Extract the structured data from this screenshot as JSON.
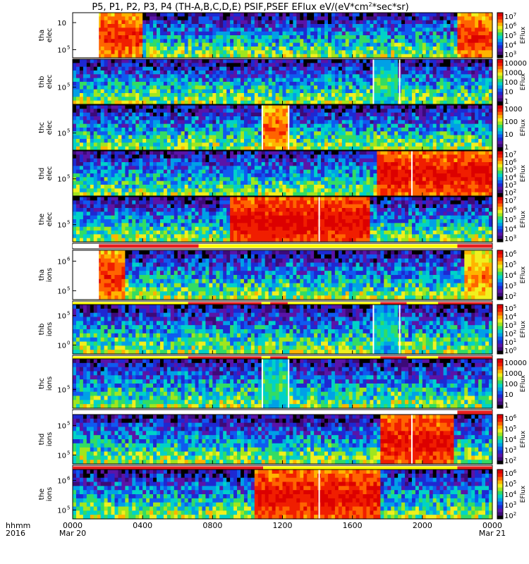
{
  "title": "P5, P1, P2, P3, P4 (TH-A,B,C,D,E) PSIF,PSEF EFlux eV/(eV*cm",
  "title_sup": "2",
  "title_tail": "*sec*sr)",
  "chart_data": {
    "type": "heatmap",
    "x_start": "2016-03-20 00:00",
    "x_end": "2016-03-21 00:00",
    "xaxis": {
      "row_label_1": "hhmm",
      "row_label_2": "2016",
      "ticks": [
        {
          "hhmm": "0000",
          "date": "Mar 20",
          "hour": 0
        },
        {
          "hhmm": "0400",
          "date": "",
          "hour": 4
        },
        {
          "hhmm": "0800",
          "date": "",
          "hour": 8
        },
        {
          "hhmm": "1200",
          "date": "",
          "hour": 12
        },
        {
          "hhmm": "1600",
          "date": "",
          "hour": 16
        },
        {
          "hhmm": "2000",
          "date": "",
          "hour": 20
        },
        {
          "hhmm": "0000",
          "date": "Mar 21",
          "hour": 24
        }
      ]
    },
    "colormap": [
      "#000000",
      "#3c0a78",
      "#5a14a8",
      "#1e28d2",
      "#0f5af0",
      "#00a0e6",
      "#00d2c8",
      "#32dc64",
      "#a0e61e",
      "#f0f01e",
      "#ffb400",
      "#ff6400",
      "#f01e00",
      "#dc0000"
    ],
    "panels": [
      {
        "probe": "tha",
        "species": "elec",
        "yticks": [
          "10",
          "10"
        ],
        "ytick_exp": [
          "",
          "5"
        ],
        "cb_ticks": [
          "10^7",
          "10^6",
          "10^5",
          "10^4",
          "10^3"
        ],
        "cb_label": "EFlux",
        "bar": null,
        "gaps": [
          [
            0,
            1.5
          ]
        ],
        "hot": [
          [
            0,
            4,
            0.9
          ],
          [
            22,
            24,
            0.9
          ]
        ],
        "lines": []
      },
      {
        "probe": "thb",
        "species": "elec",
        "yticks": [
          "10"
        ],
        "ytick_exp": [
          "5"
        ],
        "cb_ticks": [
          "10000",
          "1000",
          "100",
          "10",
          "1"
        ],
        "cb_label": "EFlux",
        "bar": null,
        "gaps": [],
        "hot": [
          [
            17.3,
            18.6,
            0.55
          ]
        ],
        "lines": [
          17.2,
          18.7
        ]
      },
      {
        "probe": "thc",
        "species": "elec",
        "yticks": [
          "10"
        ],
        "ytick_exp": [
          "5"
        ],
        "cb_ticks": [
          "1000",
          "100",
          "10",
          "1"
        ],
        "cb_label": "EFlux",
        "bar": null,
        "gaps": [],
        "hot": [
          [
            10.9,
            12.3,
            0.85
          ]
        ],
        "lines": [
          10.85,
          12.35
        ]
      },
      {
        "probe": "thd",
        "species": "elec",
        "yticks": [
          "10"
        ],
        "ytick_exp": [
          "5"
        ],
        "cb_ticks": [
          "10^7",
          "10^6",
          "10^5",
          "10^4",
          "10^3",
          "10^2"
        ],
        "cb_label": "EFlux",
        "bar": null,
        "gaps": [],
        "hot": [
          [
            17.5,
            24,
            0.95
          ]
        ],
        "lines": [
          19.4
        ]
      },
      {
        "probe": "the",
        "species": "elec",
        "yticks": [
          "10"
        ],
        "ytick_exp": [
          "5"
        ],
        "cb_ticks": [
          "10^7",
          "10^6",
          "10^5",
          "10^4",
          "10^3"
        ],
        "cb_label": "EFlux",
        "bar": [
          {
            "from": 0,
            "to": 1.5,
            "color": "#ffffff"
          },
          {
            "from": 1.5,
            "to": 7.2,
            "color": "#e61e1e"
          },
          {
            "from": 7.2,
            "to": 22,
            "color": "#ffff00"
          },
          {
            "from": 22,
            "to": 24,
            "color": "#e61e1e"
          }
        ],
        "gaps": [],
        "hot": [
          [
            9,
            17,
            0.97
          ]
        ],
        "lines": [
          14.1
        ]
      },
      {
        "probe": "tha",
        "species": "ions",
        "yticks": [
          "10",
          "10"
        ],
        "ytick_exp": [
          "6",
          "5"
        ],
        "cb_ticks": [
          "10^6",
          "10^5",
          "10^4",
          "10^3",
          "10^2"
        ],
        "cb_label": "EFlux",
        "bar": [
          {
            "from": 0,
            "to": 6.6,
            "color": "#ffff00"
          },
          {
            "from": 6.6,
            "to": 10.8,
            "color": "#e61e1e"
          },
          {
            "from": 10.8,
            "to": 11.3,
            "color": "#ffff00"
          },
          {
            "from": 11.3,
            "to": 12.3,
            "color": "#e61e1e"
          },
          {
            "from": 12.3,
            "to": 17.6,
            "color": "#ffff00"
          },
          {
            "from": 17.6,
            "to": 19.1,
            "color": "#e61e1e"
          },
          {
            "from": 19.1,
            "to": 20.9,
            "color": "#ffff00"
          },
          {
            "from": 20.9,
            "to": 24,
            "color": "#e61e1e"
          }
        ],
        "gaps": [
          [
            0,
            1.5
          ]
        ],
        "hot": [
          [
            1.5,
            3,
            0.9
          ],
          [
            22.5,
            24,
            0.8
          ]
        ],
        "lines": []
      },
      {
        "probe": "thb",
        "species": "ions",
        "yticks": [
          "10",
          "10"
        ],
        "ytick_exp": [
          "5",
          "0"
        ],
        "cb_ticks": [
          "10^5",
          "10^4",
          "10^3",
          "10^2",
          "10^1",
          "10^0"
        ],
        "cb_label": "EFlux",
        "bar": [
          {
            "from": 0,
            "to": 6.6,
            "color": "#ffff00"
          },
          {
            "from": 6.6,
            "to": 10.8,
            "color": "#e61e1e"
          },
          {
            "from": 10.8,
            "to": 11.3,
            "color": "#ffff00"
          },
          {
            "from": 11.3,
            "to": 12.3,
            "color": "#e61e1e"
          },
          {
            "from": 12.3,
            "to": 17.6,
            "color": "#ffff00"
          },
          {
            "from": 17.6,
            "to": 19.1,
            "color": "#e61e1e"
          },
          {
            "from": 19.1,
            "to": 20.9,
            "color": "#ffff00"
          },
          {
            "from": 20.9,
            "to": 24,
            "color": "#e61e1e"
          }
        ],
        "gaps": [],
        "hot": [
          [
            17.3,
            18.6,
            0.5
          ]
        ],
        "lines": [
          17.2,
          18.7
        ]
      },
      {
        "probe": "thc",
        "species": "ions",
        "yticks": [
          "10"
        ],
        "ytick_exp": [
          "5"
        ],
        "cb_ticks": [
          "10000",
          "1000",
          "100",
          "10",
          "1"
        ],
        "cb_label": "EFlux",
        "bar": [
          {
            "from": 0,
            "to": 22,
            "color": "#ffffff"
          },
          {
            "from": 22,
            "to": 24,
            "color": "#e61e1e"
          }
        ],
        "gaps": [],
        "hot": [
          [
            10.9,
            12.3,
            0.55
          ]
        ],
        "lines": [
          10.85,
          12.35
        ]
      },
      {
        "probe": "thd",
        "species": "ions",
        "yticks": [
          "10",
          "10"
        ],
        "ytick_exp": [
          "5",
          "5"
        ],
        "cb_ticks": [
          "10^6",
          "10^5",
          "10^4",
          "10^3",
          "10^2"
        ],
        "cb_label": "EFlux",
        "bar": [
          {
            "from": 0,
            "to": 10.9,
            "color": "#e61e1e"
          },
          {
            "from": 10.9,
            "to": 22,
            "color": "#ffff00"
          },
          {
            "from": 22,
            "to": 24,
            "color": "#e61e1e"
          }
        ],
        "gaps": [],
        "hot": [
          [
            17.6,
            21.8,
            0.95
          ]
        ],
        "lines": [
          19.4
        ]
      },
      {
        "probe": "the",
        "species": "ions",
        "yticks": [
          "10",
          "10"
        ],
        "ytick_exp": [
          "6",
          "5"
        ],
        "cb_ticks": [
          "10^6",
          "10^5",
          "10^4",
          "10^3",
          "10^2"
        ],
        "cb_label": "EFlux",
        "bar": null,
        "gaps": [],
        "hot": [
          [
            10.5,
            17.5,
            0.95
          ]
        ],
        "lines": [
          14.1
        ]
      }
    ]
  }
}
